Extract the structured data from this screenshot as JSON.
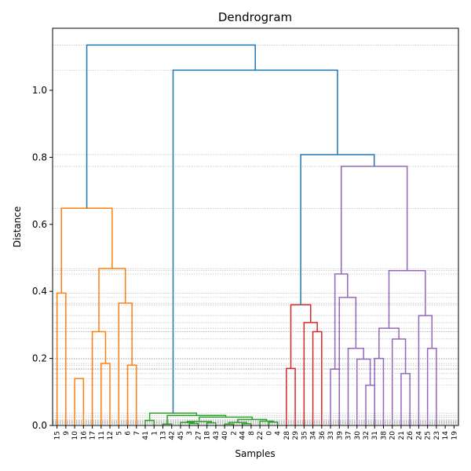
{
  "chart_data": {
    "type": "dendrogram",
    "title": "Dendrogram",
    "xlabel": "Samples",
    "ylabel": "Distance",
    "ylim": [
      0,
      1.185
    ],
    "yticks": [
      0.0,
      0.2,
      0.4,
      0.6,
      0.8,
      1.0
    ],
    "grid": true,
    "leaves": [
      "15",
      "9",
      "10",
      "16",
      "17",
      "11",
      "12",
      "5",
      "6",
      "7",
      "41",
      "1",
      "13",
      "42",
      "45",
      "3",
      "27",
      "18",
      "43",
      "40",
      "2",
      "44",
      "8",
      "22",
      "0",
      "4",
      "28",
      "29",
      "35",
      "34",
      "36",
      "33",
      "39",
      "37",
      "30",
      "32",
      "31",
      "38",
      "20",
      "21",
      "26",
      "24",
      "25",
      "23",
      "14",
      "19"
    ],
    "colors": {
      "above": "#1f77b4",
      "orange": "#ff7f0e",
      "green": "#2ca02c",
      "red": "#d62728",
      "purple": "#9467bd",
      "grid": "#b0b0b0"
    },
    "links": [
      {
        "a": 0,
        "b": 1,
        "h": 0.395,
        "c": "orange"
      },
      {
        "a": 2,
        "b": 3,
        "h": 0.14,
        "c": "orange"
      },
      {
        "a": 5,
        "b": 6,
        "h": 0.185,
        "c": "orange"
      },
      {
        "a": 4,
        "b": 5.5,
        "h": 0.28,
        "c": "orange"
      },
      {
        "a": 8,
        "b": 9,
        "h": 0.18,
        "c": "orange"
      },
      {
        "a": 7,
        "b": 8.5,
        "h": 0.365,
        "c": "orange"
      },
      {
        "a": 4.75,
        "b": 7.75,
        "h": 0.468,
        "c": "orange"
      },
      {
        "a": 0.5,
        "b": 6.25,
        "h": 0.648,
        "c": "orange"
      },
      {
        "a": 10,
        "b": 11,
        "h": 0.015,
        "c": "green"
      },
      {
        "a": 12,
        "b": 13,
        "h": 0.004,
        "c": "green"
      },
      {
        "a": 15,
        "b": 16,
        "h": 0.006,
        "c": "green"
      },
      {
        "a": 14,
        "b": 15.5,
        "h": 0.009,
        "c": "green"
      },
      {
        "a": 17,
        "b": 18,
        "h": 0.008,
        "c": "green"
      },
      {
        "a": 14.75,
        "b": 17.5,
        "h": 0.012,
        "c": "green"
      },
      {
        "a": 19,
        "b": 20,
        "h": 0.004,
        "c": "green"
      },
      {
        "a": 21,
        "b": 22,
        "h": 0.005,
        "c": "green"
      },
      {
        "a": 19.5,
        "b": 21.5,
        "h": 0.009,
        "c": "green"
      },
      {
        "a": 24,
        "b": 25,
        "h": 0.01,
        "c": "green"
      },
      {
        "a": 23,
        "b": 24.5,
        "h": 0.013,
        "c": "green"
      },
      {
        "a": 20.5,
        "b": 23.75,
        "h": 0.018,
        "c": "green"
      },
      {
        "a": 16.125,
        "b": 22.125,
        "h": 0.025,
        "c": "green"
      },
      {
        "a": 12.5,
        "b": 19.125,
        "h": 0.03,
        "c": "green"
      },
      {
        "a": 10.5,
        "b": 15.8125,
        "h": 0.037,
        "c": "green"
      },
      {
        "a": 26,
        "b": 27,
        "h": 0.17,
        "c": "red"
      },
      {
        "a": 29,
        "b": 30,
        "h": 0.28,
        "c": "red"
      },
      {
        "a": 28,
        "b": 29.5,
        "h": 0.307,
        "c": "red"
      },
      {
        "a": 26.5,
        "b": 28.75,
        "h": 0.36,
        "c": "red"
      },
      {
        "a": 31,
        "b": 32,
        "h": 0.168,
        "c": "purple"
      },
      {
        "a": 35,
        "b": 36,
        "h": 0.12,
        "c": "purple"
      },
      {
        "a": 34,
        "b": 35.5,
        "h": 0.198,
        "c": "purple"
      },
      {
        "a": 33,
        "b": 34.75,
        "h": 0.23,
        "c": "purple"
      },
      {
        "a": 32,
        "b": 33.875,
        "h": 0.382,
        "c": "purple"
      },
      {
        "a": 31.5,
        "b": 32.9375,
        "h": 0.452,
        "c": "purple"
      },
      {
        "a": 36,
        "b": 37,
        "h": 0.2,
        "c": "purple"
      },
      {
        "a": 39,
        "b": 40,
        "h": 0.155,
        "c": "purple"
      },
      {
        "a": 38,
        "b": 39.5,
        "h": 0.258,
        "c": "purple"
      },
      {
        "a": 36.5,
        "b": 38.75,
        "h": 0.29,
        "c": "purple"
      },
      {
        "a": 42,
        "b": 43,
        "h": 0.23,
        "c": "purple"
      },
      {
        "a": 41,
        "b": 42.5,
        "h": 0.328,
        "c": "purple"
      },
      {
        "a": 37.625,
        "b": 41.75,
        "h": 0.462,
        "c": "purple"
      },
      {
        "a": 32.21875,
        "b": 39.6875,
        "h": 0.773,
        "c": "purple"
      },
      {
        "a": 27.625,
        "b": 35.953125,
        "h": 0.808,
        "c": "above"
      },
      {
        "a": 13.15625,
        "b": 31.7890625,
        "h": 1.06,
        "c": "above"
      },
      {
        "a": 3.375,
        "b": 22.47265625,
        "h": 1.135,
        "c": "above"
      }
    ]
  }
}
